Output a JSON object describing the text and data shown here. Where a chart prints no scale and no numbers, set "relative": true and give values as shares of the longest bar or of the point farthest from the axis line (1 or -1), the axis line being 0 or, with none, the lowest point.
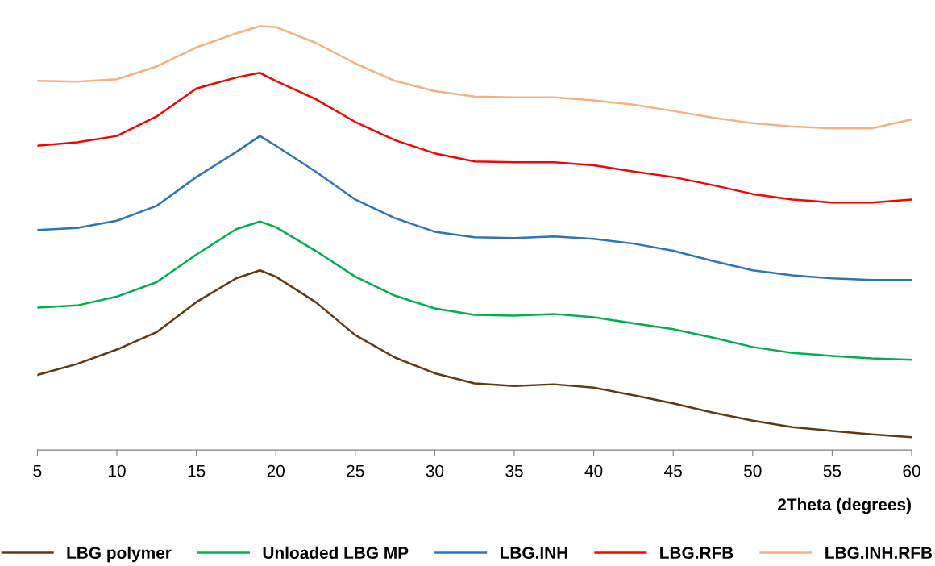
{
  "chart_data": {
    "type": "line",
    "relative": true,
    "xlabel": "2Theta (degrees)",
    "xlim": [
      5,
      60
    ],
    "xticks": [
      5,
      10,
      15,
      20,
      25,
      30,
      35,
      40,
      45,
      50,
      55,
      60
    ],
    "legend": "bottom",
    "grid": false,
    "tick_labels": "x",
    "x": [
      5,
      7.5,
      10,
      12.5,
      15,
      17.5,
      19,
      20,
      22.5,
      25,
      27.5,
      30,
      32.5,
      35,
      37.5,
      40,
      42.5,
      45,
      47.5,
      50,
      52.5,
      55,
      57.5,
      60
    ],
    "series": [
      {
        "name": "LBG polymer",
        "color": "#603913",
        "values": [
          0.177,
          0.203,
          0.237,
          0.278,
          0.349,
          0.405,
          0.424,
          0.409,
          0.349,
          0.271,
          0.218,
          0.181,
          0.157,
          0.151,
          0.155,
          0.147,
          0.129,
          0.11,
          0.088,
          0.069,
          0.054,
          0.045,
          0.037,
          0.03
        ]
      },
      {
        "name": "Unloaded LBG MP",
        "color": "#00b050",
        "values": [
          0.336,
          0.341,
          0.362,
          0.396,
          0.461,
          0.521,
          0.539,
          0.526,
          0.47,
          0.409,
          0.364,
          0.334,
          0.319,
          0.317,
          0.321,
          0.313,
          0.299,
          0.285,
          0.265,
          0.243,
          0.229,
          0.222,
          0.216,
          0.213
        ]
      },
      {
        "name": "LBG.INH",
        "color": "#2e75b6",
        "values": [
          0.519,
          0.524,
          0.541,
          0.576,
          0.644,
          0.703,
          0.741,
          0.718,
          0.657,
          0.591,
          0.547,
          0.515,
          0.502,
          0.5,
          0.504,
          0.498,
          0.487,
          0.47,
          0.446,
          0.424,
          0.412,
          0.405,
          0.401,
          0.401
        ]
      },
      {
        "name": "LBG.RFB",
        "color": "#ff0000",
        "values": [
          0.718,
          0.726,
          0.741,
          0.787,
          0.853,
          0.879,
          0.89,
          0.871,
          0.828,
          0.774,
          0.731,
          0.7,
          0.681,
          0.679,
          0.679,
          0.672,
          0.657,
          0.644,
          0.625,
          0.604,
          0.591,
          0.584,
          0.584,
          0.591
        ]
      },
      {
        "name": "LBG.INH.RFB",
        "color": "#f4b183",
        "values": [
          0.871,
          0.869,
          0.875,
          0.905,
          0.95,
          0.983,
          1,
          0.998,
          0.961,
          0.912,
          0.871,
          0.847,
          0.834,
          0.832,
          0.832,
          0.825,
          0.815,
          0.8,
          0.784,
          0.771,
          0.763,
          0.759,
          0.759,
          0.78
        ]
      }
    ]
  }
}
